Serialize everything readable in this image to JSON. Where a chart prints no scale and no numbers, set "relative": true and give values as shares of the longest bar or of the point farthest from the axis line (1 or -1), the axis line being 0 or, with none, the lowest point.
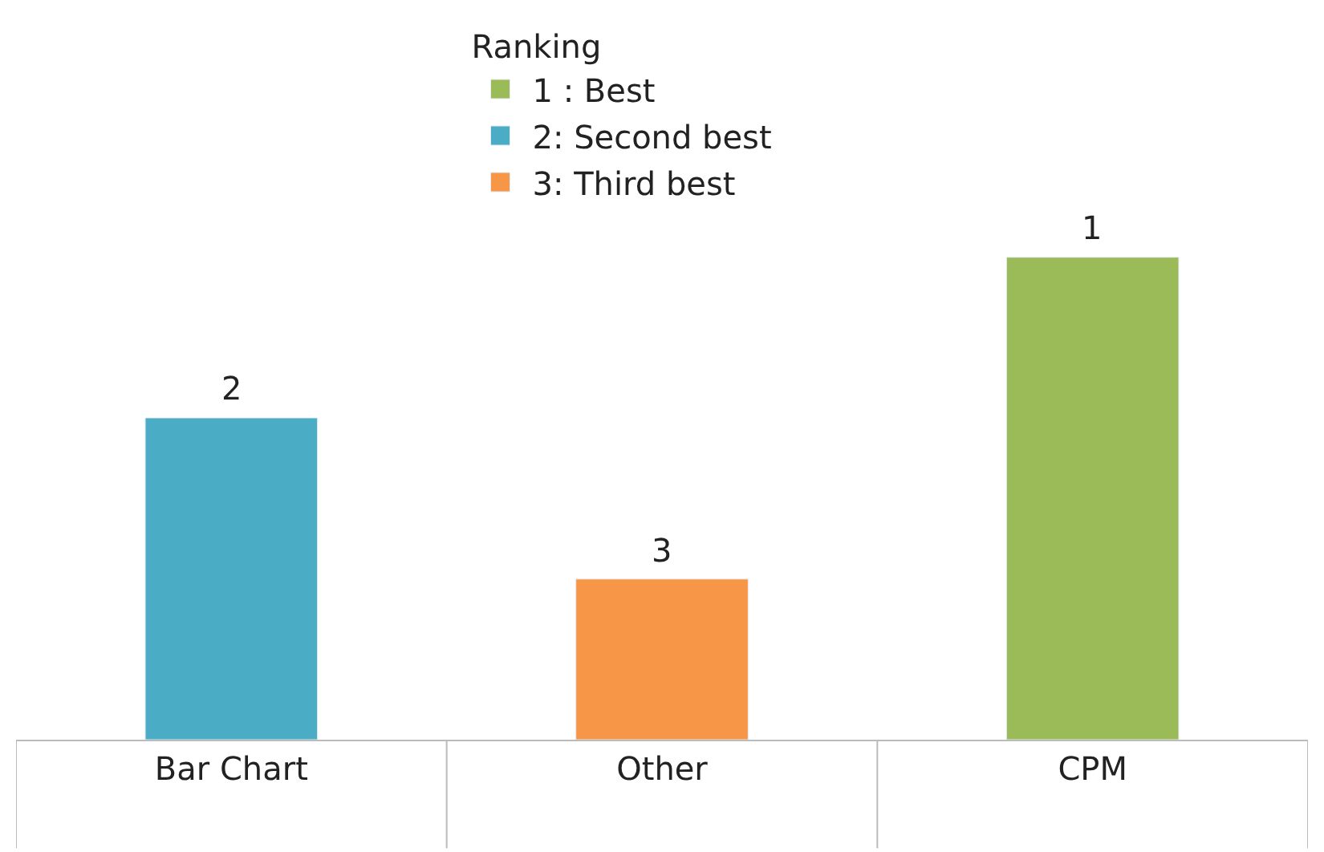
{
  "chart_data": {
    "type": "bar",
    "relative": true,
    "categories": [
      "Bar Chart",
      "Other",
      "CPM"
    ],
    "legend_title": "Ranking",
    "legend": "top",
    "series": [
      {
        "name": "1 : Best",
        "color": "#9bbb59",
        "values": [
          null,
          null,
          1
        ]
      },
      {
        "name": "2: Second best",
        "color": "#4bacc6",
        "values": [
          0.667,
          null,
          null
        ]
      },
      {
        "name": "3: Third best",
        "color": "#f79646",
        "values": [
          null,
          0.333,
          null
        ]
      }
    ],
    "annotations": [
      {
        "text": "2",
        "x": "Bar Chart",
        "y": 0.667
      },
      {
        "text": "3",
        "x": "Other",
        "y": 0.333
      },
      {
        "text": "1",
        "x": "CPM",
        "y": 1
      }
    ]
  }
}
